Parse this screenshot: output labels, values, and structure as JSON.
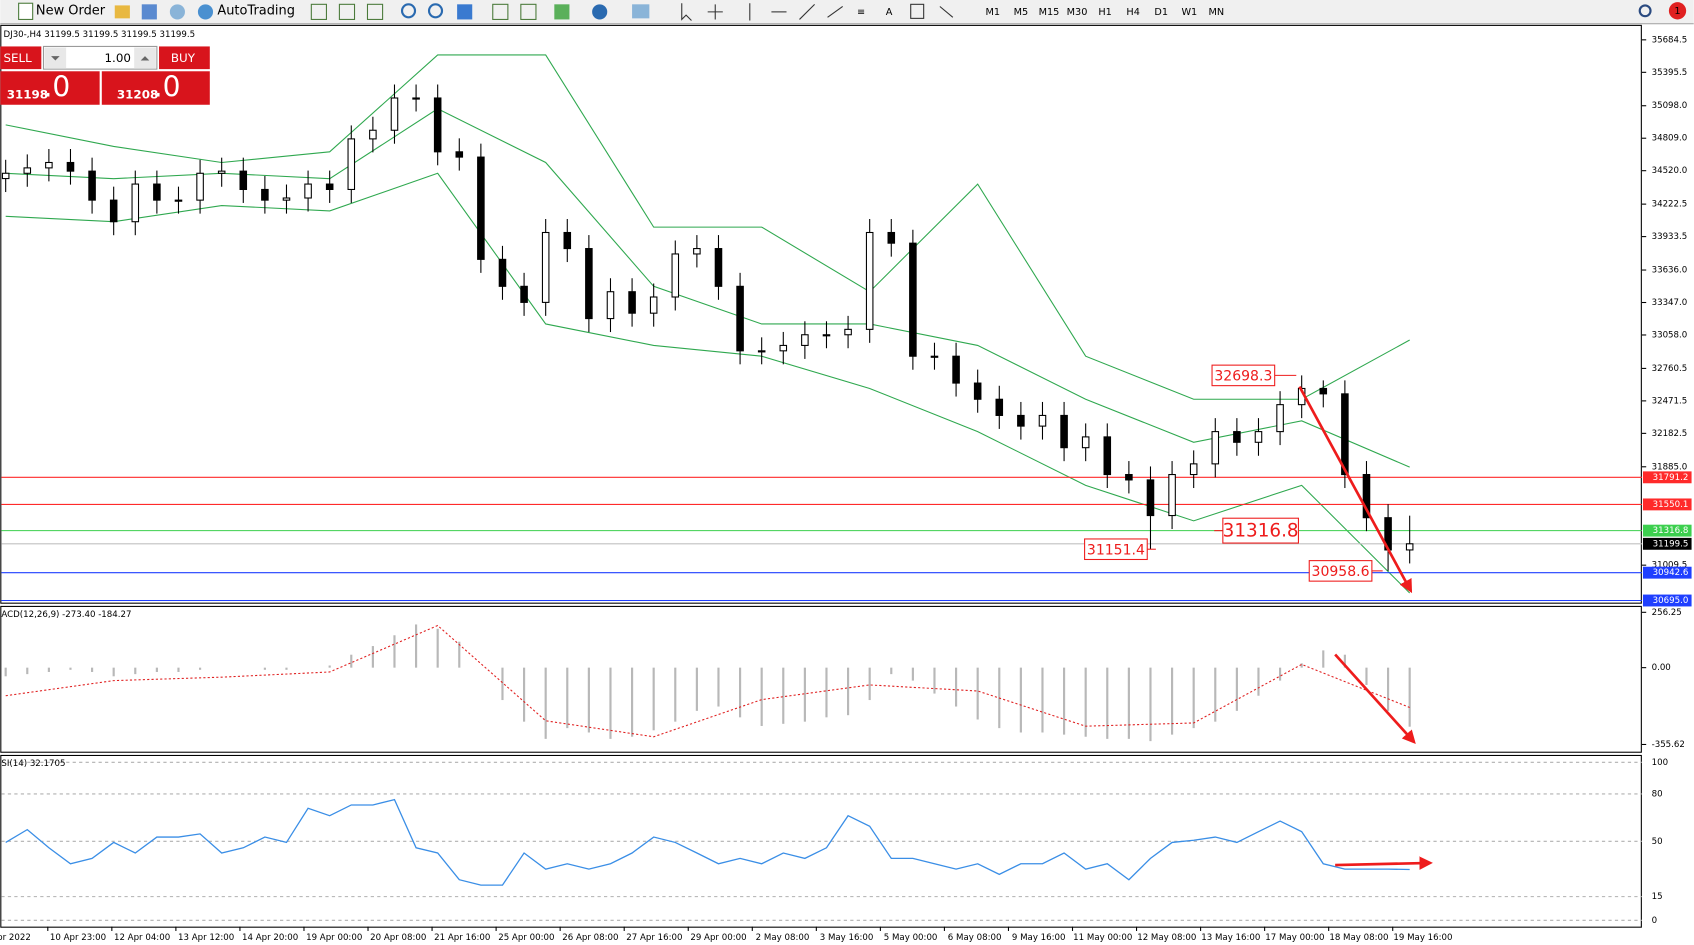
{
  "toolbar": {
    "new_order": "New Order",
    "autotrading": "AutoTrading",
    "timeframes": [
      "M1",
      "M5",
      "M15",
      "M30",
      "H1",
      "H4",
      "D1",
      "W1",
      "MN"
    ],
    "notification_count": "1"
  },
  "trade_panel": {
    "sell": "SELL",
    "buy": "BUY",
    "volume": "1.00",
    "bid_main": "31198",
    "bid_fraction": ".0",
    "ask_main": "31208",
    "ask_fraction": ".0"
  },
  "chart": {
    "header": "DJ30-,H4  31199.5 31199.5 31199.5 31199.5",
    "ylim": [
      30676,
      35818
    ],
    "price_ticks": [
      35684.5,
      35395.5,
      {
        "value": 35098,
        "label": "35098.0"
      },
      {
        "value": 34809,
        "label": "34809.0"
      },
      {
        "value": 34520,
        "label": "34520.0"
      },
      34222.5,
      33933.5,
      {
        "value": 33636,
        "label": "33636.0"
      },
      {
        "value": 33347,
        "label": "33347.0"
      },
      {
        "value": 33058,
        "label": "33058.0"
      },
      32760.5,
      32471.5,
      32182.5,
      {
        "value": 31885,
        "label": "31885.0"
      },
      31009.5
    ],
    "open": [
      34450,
      34497,
      34545,
      34593,
      34516,
      34258,
      34066,
      34401,
      34258,
      34258,
      34497,
      34516,
      34353,
      34258,
      34277,
      34401,
      34353,
      34803,
      34880,
      35167,
      35167,
      34688,
      34641,
      33731,
      33491,
      33348,
      33970,
      33827,
      33204,
      33443,
      33252,
      33396,
      33779,
      33827,
      33491,
      32917,
      32917,
      32965,
      33060,
      33060,
      33108,
      33970,
      33875,
      32869,
      32869,
      32630,
      32486,
      32342,
      32247,
      32342,
      32055,
      32151,
      31816,
      31768,
      31451,
      31816,
      31911,
      32198,
      32103,
      32198,
      32438,
      32582,
      32534,
      31816,
      31432,
      31145
    ],
    "high": [
      34617,
      34665,
      34713,
      34713,
      34636,
      34378,
      34521,
      34521,
      34378,
      34617,
      34636,
      34636,
      34473,
      34397,
      34521,
      34521,
      34923,
      35000,
      35287,
      35287,
      35287,
      34808,
      34761,
      33851,
      33611,
      34090,
      34090,
      33947,
      33563,
      33563,
      33516,
      33899,
      33947,
      33947,
      33611,
      33037,
      33085,
      33180,
      33180,
      33228,
      34090,
      34090,
      33995,
      32989,
      32989,
      32750,
      32606,
      32462,
      32462,
      32462,
      32271,
      32271,
      31936,
      31888,
      31936,
      32031,
      32318,
      32318,
      32318,
      32558,
      32698.3,
      32654,
      32654,
      31936,
      31552,
      31450
    ],
    "low": [
      34330,
      34377,
      34425,
      34396,
      34138,
      33946,
      33946,
      34138,
      34138,
      34138,
      34377,
      34233,
      34138,
      34138,
      34157,
      34233,
      34233,
      34683,
      34760,
      35047,
      34568,
      34521,
      33611,
      33371,
      33228,
      33228,
      33707,
      33084,
      33084,
      33132,
      33132,
      33276,
      33659,
      33371,
      32797,
      32797,
      32797,
      32845,
      32940,
      32940,
      32988,
      33755,
      32749,
      32749,
      32510,
      32366,
      32222,
      32127,
      32127,
      31935,
      31935,
      31696,
      31648,
      31151.4,
      31331,
      31696,
      31791,
      31983,
      31983,
      32078,
      32318,
      32414,
      31696,
      31312,
      30958.6,
      31025
    ],
    "close": [
      34497,
      34545,
      34593,
      34516,
      34258,
      34066,
      34401,
      34258,
      34258,
      34497,
      34516,
      34353,
      34258,
      34277,
      34401,
      34353,
      34803,
      34880,
      35167,
      35167,
      34688,
      34641,
      33731,
      33491,
      33348,
      33970,
      33827,
      33204,
      33443,
      33252,
      33396,
      33779,
      33827,
      33491,
      32917,
      32917,
      32965,
      33060,
      33060,
      33108,
      33970,
      33875,
      32869,
      32869,
      32630,
      32486,
      32342,
      32247,
      32342,
      32055,
      32151,
      31816,
      31768,
      31451,
      31816,
      31911,
      32198,
      32103,
      32198,
      32438,
      32582,
      32534,
      31816,
      31432,
      31145,
      31199.5
    ],
    "bands": {
      "color": "#2fa84f",
      "x_index": [
        0,
        5,
        10,
        15,
        20,
        25,
        30,
        35,
        40,
        45,
        50,
        55,
        60,
        65
      ],
      "upper": [
        34928,
        34736,
        34593,
        34688,
        35550,
        35550,
        34018,
        34018,
        33443,
        34401,
        32869,
        32486,
        32486,
        33013
      ],
      "middle": [
        34497,
        34449,
        34497,
        34449,
        35071,
        34593,
        33491,
        33156,
        33156,
        32965,
        32486,
        32103,
        32294,
        31882
      ],
      "lower": [
        34114,
        34066,
        34210,
        34162,
        34497,
        33156,
        32965,
        32869,
        32582,
        32198,
        31720,
        31404,
        31720,
        30762
      ]
    },
    "levels": [
      {
        "value": 31791.2,
        "color": "#ff2a2a",
        "label_color": "#ff2a2a"
      },
      {
        "value": 31550.1,
        "color": "#ff2a2a",
        "label_color": "#ff2a2a"
      },
      {
        "value": 31316.8,
        "color": "#3ccf4e",
        "label_color": "#3ccf4e"
      },
      {
        "value": 31199.5,
        "color": "#c0c0c0",
        "label_color": "#000000"
      },
      {
        "value": 30942.6,
        "color": "#1f3fff",
        "label_color": "#1f3fff"
      },
      {
        "value": 30695,
        "label": "30695.0",
        "color": "#1f3fff",
        "label_color": "#1f3fff"
      }
    ],
    "annotations": [
      32698.3,
      31316.8,
      31151.4,
      30958.6
    ],
    "x_labels": [
      "pr 2022",
      "10 Apr 23:00",
      "12 Apr 04:00",
      "13 Apr 12:00",
      "14 Apr 20:00",
      "19 Apr 00:00",
      "20 Apr 08:00",
      "21 Apr 16:00",
      "25 Apr 00:00",
      "26 Apr 08:00",
      "27 Apr 16:00",
      "29 Apr 00:00",
      "2 May 08:00",
      "3 May 16:00",
      "5 May 00:00",
      "6 May 08:00",
      "9 May 16:00",
      "11 May 00:00",
      "12 May 08:00",
      "13 May 16:00",
      "17 May 00:00",
      "18 May 08:00",
      "19 May 16:00"
    ]
  },
  "macd": {
    "label": "ACD(12,26,9) -273.40 -184.27",
    "ylim": [
      -389,
      281
    ],
    "ticks": [
      {
        "value": 256.25,
        "label": "256.25"
      },
      {
        "value": 0,
        "label": "0.00"
      },
      {
        "value": -355.62,
        "label": "-355.62"
      }
    ],
    "histogram": [
      -40,
      -30,
      -20,
      -10,
      -20,
      -40,
      -30,
      -20,
      -20,
      -10,
      0,
      0,
      -10,
      -10,
      0,
      10,
      60,
      100,
      150,
      200,
      180,
      120,
      0,
      -150,
      -250,
      -330,
      -280,
      -300,
      -330,
      -320,
      -290,
      -250,
      -200,
      -180,
      -230,
      -270,
      -260,
      -250,
      -230,
      -220,
      -150,
      -30,
      -60,
      -120,
      -180,
      -240,
      -280,
      -300,
      -300,
      -310,
      -320,
      -330,
      -330,
      -340,
      -310,
      -280,
      -250,
      -200,
      -130,
      -60,
      20,
      80,
      60,
      -80,
      -200,
      -273.4
    ],
    "signal_index": [
      0,
      5,
      10,
      15,
      20,
      25,
      30,
      35,
      40,
      45,
      50,
      55,
      60,
      65
    ],
    "signal": [
      -130,
      -60,
      -44,
      -20,
      195,
      -246,
      -320,
      -148,
      -80,
      -108,
      -271,
      -256,
      15,
      -184.27
    ]
  },
  "rsi": {
    "label": "SI(14) 32.1705",
    "ylim": [
      -4,
      104
    ],
    "ticks": [
      100,
      80,
      50,
      15,
      0
    ],
    "values": [
      49.3,
      57.4,
      45.9,
      35.8,
      39.2,
      49.3,
      42.6,
      52.7,
      52.7,
      54.7,
      42.6,
      45.9,
      52.7,
      49.3,
      70.9,
      66.2,
      73,
      73,
      76.4,
      45.9,
      42.6,
      25.7,
      22.3,
      22.3,
      42.6,
      32.4,
      35.8,
      32.4,
      35.8,
      42.6,
      52.7,
      49.3,
      42.6,
      35.8,
      39.2,
      35.8,
      42.6,
      39.2,
      45.9,
      66.2,
      59.5,
      39.2,
      39.2,
      35.8,
      32.4,
      35.8,
      29.1,
      35.8,
      35.8,
      42.6,
      32.4,
      35.8,
      25.7,
      39.2,
      49.3,
      50.7,
      52.7,
      49.3,
      56.1,
      62.8,
      56.1,
      35.8,
      32.4,
      32.4,
      32.4,
      32.1705
    ]
  }
}
